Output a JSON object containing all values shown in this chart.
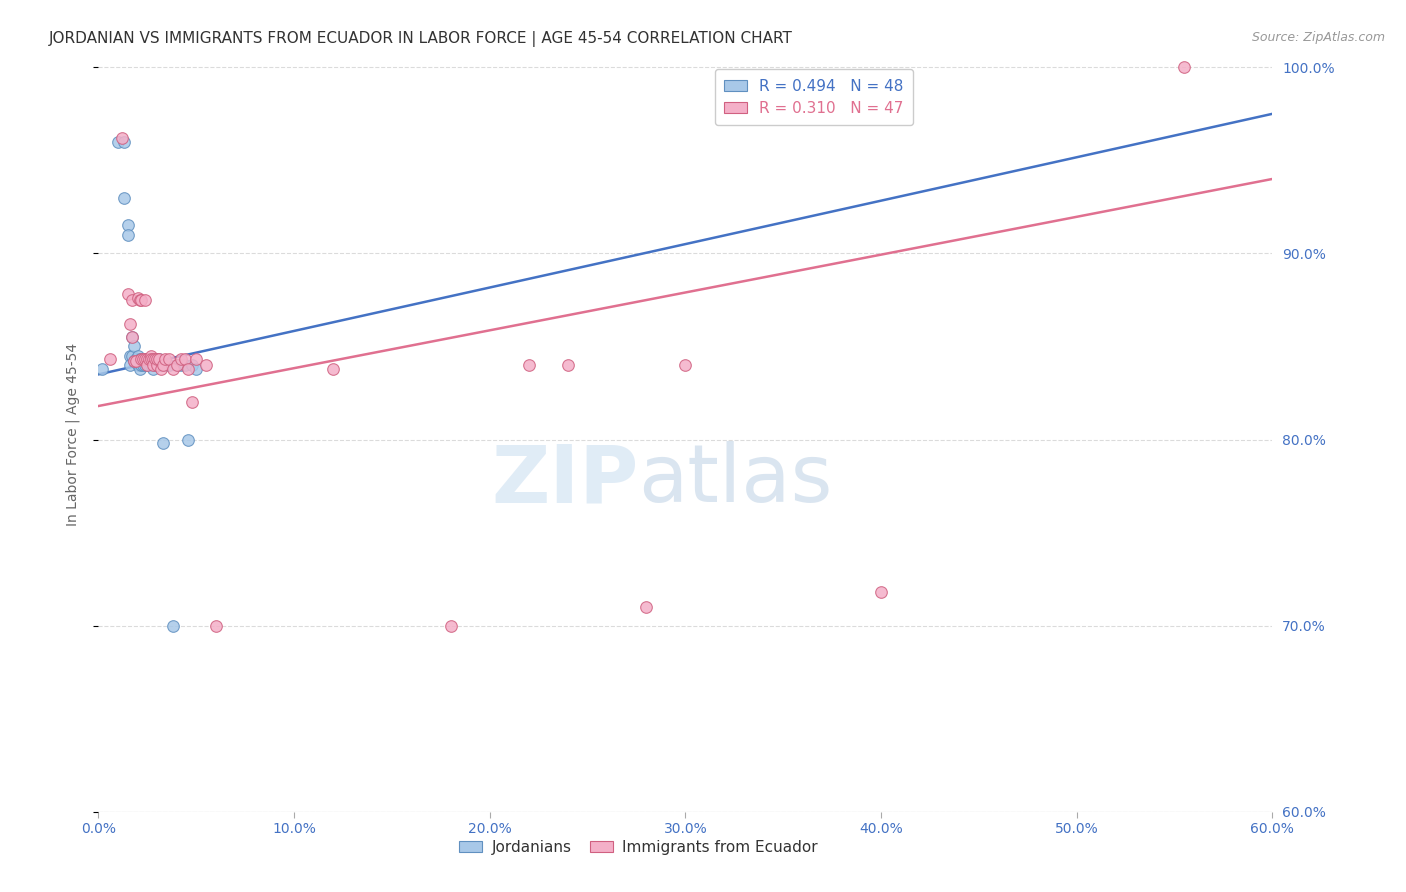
{
  "title": "JORDANIAN VS IMMIGRANTS FROM ECUADOR IN LABOR FORCE | AGE 45-54 CORRELATION CHART",
  "source": "Source: ZipAtlas.com",
  "ylabel": "In Labor Force | Age 45-54",
  "xlim": [
    0.0,
    0.6
  ],
  "ylim": [
    0.6,
    1.005
  ],
  "xticks": [
    0.0,
    0.1,
    0.2,
    0.3,
    0.4,
    0.5,
    0.6
  ],
  "yticks": [
    0.6,
    0.7,
    0.8,
    0.9,
    1.0
  ],
  "ytick_labels": [
    "60.0%",
    "70.0%",
    "80.0%",
    "90.0%",
    "100.0%"
  ],
  "xtick_labels": [
    "0.0%",
    "10.0%",
    "20.0%",
    "30.0%",
    "40.0%",
    "50.0%",
    "60.0%"
  ],
  "blue_color": "#a8c8e8",
  "pink_color": "#f4b0c8",
  "blue_edge_color": "#6090c0",
  "pink_edge_color": "#d06080",
  "blue_line_color": "#4472c4",
  "pink_line_color": "#e07090",
  "legend_blue_label": "R = 0.494   N = 48",
  "legend_pink_label": "R = 0.310   N = 47",
  "blue_legend_text_color": "#4472c4",
  "pink_legend_text_color": "#e07090",
  "blue_scatter_x": [
    0.002,
    0.01,
    0.013,
    0.013,
    0.015,
    0.015,
    0.016,
    0.016,
    0.017,
    0.017,
    0.018,
    0.018,
    0.019,
    0.019,
    0.02,
    0.02,
    0.021,
    0.021,
    0.021,
    0.022,
    0.022,
    0.023,
    0.023,
    0.024,
    0.024,
    0.025,
    0.025,
    0.026,
    0.026,
    0.027,
    0.027,
    0.028,
    0.028,
    0.029,
    0.03,
    0.03,
    0.031,
    0.032,
    0.033,
    0.034,
    0.036,
    0.038,
    0.04,
    0.042,
    0.044,
    0.046,
    0.048,
    0.05
  ],
  "blue_scatter_y": [
    0.838,
    0.96,
    0.96,
    0.93,
    0.915,
    0.91,
    0.845,
    0.84,
    0.855,
    0.845,
    0.85,
    0.842,
    0.843,
    0.842,
    0.845,
    0.84,
    0.843,
    0.84,
    0.838,
    0.843,
    0.84,
    0.843,
    0.84,
    0.843,
    0.84,
    0.843,
    0.84,
    0.843,
    0.84,
    0.843,
    0.84,
    0.843,
    0.838,
    0.84,
    0.843,
    0.84,
    0.843,
    0.84,
    0.798,
    0.84,
    0.84,
    0.7,
    0.84,
    0.84,
    0.84,
    0.8,
    0.84,
    0.838
  ],
  "pink_scatter_x": [
    0.006,
    0.012,
    0.015,
    0.016,
    0.017,
    0.017,
    0.018,
    0.019,
    0.02,
    0.021,
    0.022,
    0.022,
    0.023,
    0.024,
    0.024,
    0.025,
    0.025,
    0.026,
    0.027,
    0.027,
    0.028,
    0.028,
    0.029,
    0.03,
    0.03,
    0.031,
    0.032,
    0.033,
    0.034,
    0.036,
    0.038,
    0.04,
    0.042,
    0.044,
    0.046,
    0.048,
    0.05,
    0.055,
    0.06,
    0.12,
    0.18,
    0.22,
    0.24,
    0.28,
    0.3,
    0.4,
    0.555
  ],
  "pink_scatter_y": [
    0.843,
    0.962,
    0.878,
    0.862,
    0.875,
    0.855,
    0.842,
    0.842,
    0.876,
    0.875,
    0.843,
    0.875,
    0.843,
    0.843,
    0.875,
    0.843,
    0.84,
    0.843,
    0.845,
    0.843,
    0.843,
    0.84,
    0.843,
    0.84,
    0.843,
    0.843,
    0.838,
    0.84,
    0.843,
    0.843,
    0.838,
    0.84,
    0.843,
    0.843,
    0.838,
    0.82,
    0.843,
    0.84,
    0.7,
    0.838,
    0.7,
    0.84,
    0.84,
    0.71,
    0.84,
    0.718,
    1.0
  ],
  "blue_trendline_x": [
    0.0,
    0.6
  ],
  "blue_trendline_y": [
    0.835,
    0.975
  ],
  "pink_trendline_x": [
    0.0,
    0.6
  ],
  "pink_trendline_y": [
    0.818,
    0.94
  ],
  "watermark_zip": "ZIP",
  "watermark_atlas": "atlas",
  "title_fontsize": 11,
  "axis_label_fontsize": 10,
  "tick_fontsize": 10,
  "legend_fontsize": 11,
  "tick_color": "#4472c4",
  "grid_color": "#cccccc",
  "grid_linestyle": "--",
  "grid_alpha": 0.7
}
